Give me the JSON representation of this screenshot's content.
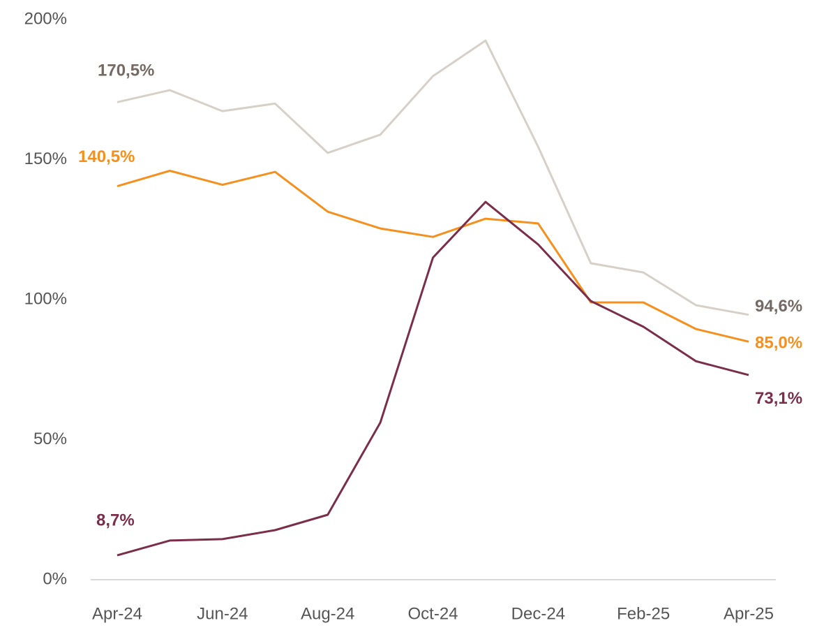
{
  "chart_data": {
    "type": "line",
    "categories": [
      "Apr-24",
      null,
      "Jun-24",
      null,
      "Aug-24",
      null,
      "Oct-24",
      null,
      "Dec-24",
      null,
      "Feb-25",
      null,
      "Apr-25"
    ],
    "ylim": [
      0,
      200
    ],
    "yticks": [
      {
        "value": 0,
        "label": "0%"
      },
      {
        "value": 50,
        "label": "50%"
      },
      {
        "value": 100,
        "label": "100%"
      },
      {
        "value": 150,
        "label": "150%"
      },
      {
        "value": 200,
        "label": "200%"
      }
    ],
    "grid": false,
    "series": [
      {
        "color": "#d6d0c8",
        "label_color": "#756a63",
        "values": [
          170.5,
          174.8,
          167.3,
          170.0,
          152.4,
          158.9,
          179.8,
          192.5,
          154.6,
          113.0,
          109.7,
          98.0,
          94.6
        ],
        "value_labels": [
          "170,5%",
          null,
          null,
          null,
          null,
          null,
          null,
          null,
          null,
          null,
          null,
          null,
          "94,6%"
        ]
      },
      {
        "color": "#f5901e",
        "label_color": "#f5901e",
        "values": [
          140.5,
          146.0,
          141.0,
          145.6,
          131.4,
          125.4,
          122.4,
          128.9,
          127.2,
          99.0,
          99.0,
          89.5,
          85.0
        ],
        "value_labels": [
          "140,5%",
          null,
          null,
          null,
          null,
          null,
          null,
          null,
          null,
          null,
          null,
          null,
          "85,0%"
        ]
      },
      {
        "color": "#7b2e4a",
        "label_color": "#7b2e4a",
        "values": [
          8.7,
          14.0,
          14.5,
          17.7,
          23.2,
          56.1,
          115.0,
          134.9,
          119.7,
          99.5,
          90.3,
          78.0,
          73.1
        ],
        "value_labels": [
          "8,7%",
          null,
          null,
          null,
          null,
          null,
          null,
          null,
          null,
          null,
          null,
          null,
          "73,1%"
        ]
      }
    ]
  }
}
